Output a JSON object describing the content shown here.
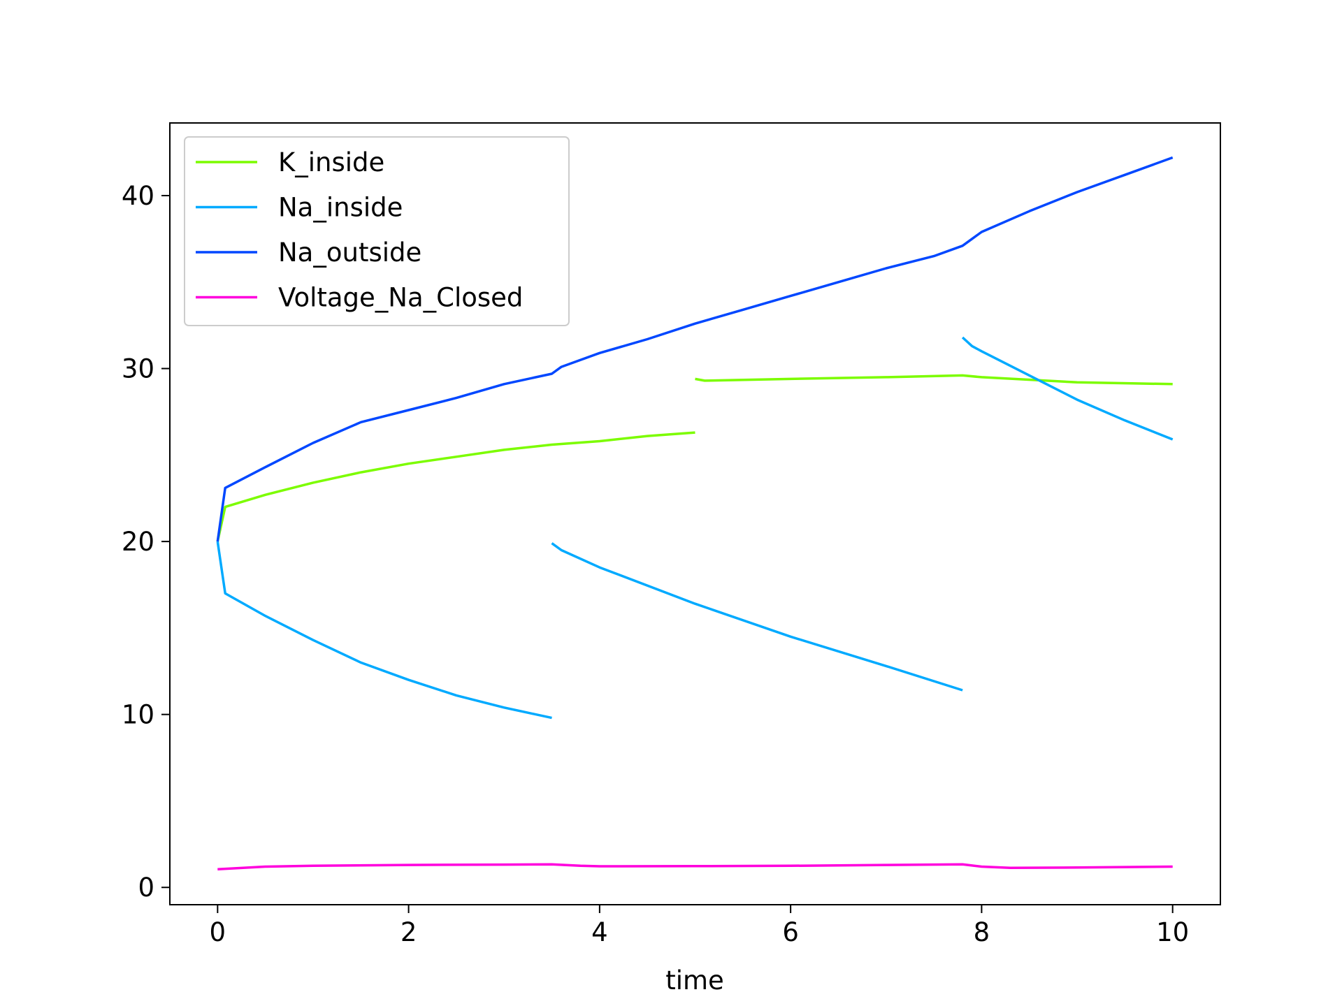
{
  "chart_data": {
    "type": "line",
    "title": "",
    "xlabel": "time",
    "ylabel": "",
    "xlim": [
      -0.5,
      10.5
    ],
    "ylim": [
      -1.0,
      44.2
    ],
    "xticks": [
      0,
      2,
      4,
      6,
      8,
      10
    ],
    "yticks": [
      0,
      10,
      20,
      30,
      40
    ],
    "grid": false,
    "legend_position": "upper-left",
    "series": [
      {
        "name": "K_inside",
        "color": "#7cfc00",
        "segments": [
          [
            [
              0,
              20.0
            ],
            [
              0.08,
              22.0
            ],
            [
              0.5,
              22.7
            ],
            [
              1.0,
              23.4
            ],
            [
              1.5,
              24.0
            ],
            [
              2.0,
              24.5
            ],
            [
              2.5,
              24.9
            ],
            [
              3.0,
              25.3
            ],
            [
              3.5,
              25.6
            ],
            [
              4.0,
              25.8
            ],
            [
              4.5,
              26.1
            ],
            [
              5.0,
              26.3
            ]
          ],
          [
            [
              5.0,
              29.4
            ],
            [
              5.1,
              29.3
            ],
            [
              6.0,
              29.4
            ],
            [
              7.0,
              29.5
            ],
            [
              7.8,
              29.6
            ],
            [
              8.0,
              29.5
            ],
            [
              9.0,
              29.2
            ],
            [
              10.0,
              29.1
            ]
          ]
        ]
      },
      {
        "name": "Na_inside",
        "color": "#00aaff",
        "segments": [
          [
            [
              0,
              20.0
            ],
            [
              0.08,
              17.0
            ],
            [
              0.5,
              15.7
            ],
            [
              1.0,
              14.3
            ],
            [
              1.5,
              13.0
            ],
            [
              2.0,
              12.0
            ],
            [
              2.5,
              11.1
            ],
            [
              3.0,
              10.4
            ],
            [
              3.5,
              9.8
            ]
          ],
          [
            [
              3.5,
              19.9
            ],
            [
              3.6,
              19.5
            ],
            [
              4.0,
              18.5
            ],
            [
              5.0,
              16.4
            ],
            [
              6.0,
              14.5
            ],
            [
              7.0,
              12.8
            ],
            [
              7.8,
              11.4
            ]
          ],
          [
            [
              7.8,
              31.8
            ],
            [
              7.9,
              31.3
            ],
            [
              8.0,
              31.0
            ],
            [
              8.5,
              29.6
            ],
            [
              9.0,
              28.2
            ],
            [
              9.5,
              27.0
            ],
            [
              10.0,
              25.9
            ]
          ]
        ]
      },
      {
        "name": "Na_outside",
        "color": "#0047ff",
        "segments": [
          [
            [
              0,
              20.0
            ],
            [
              0.08,
              23.1
            ],
            [
              0.5,
              24.3
            ],
            [
              1.0,
              25.7
            ],
            [
              1.5,
              26.9
            ],
            [
              2.0,
              27.6
            ],
            [
              2.5,
              28.3
            ],
            [
              3.0,
              29.1
            ],
            [
              3.5,
              29.7
            ],
            [
              3.6,
              30.1
            ],
            [
              4.0,
              30.9
            ],
            [
              4.5,
              31.7
            ],
            [
              5.0,
              32.6
            ],
            [
              5.5,
              33.4
            ],
            [
              6.0,
              34.2
            ],
            [
              6.5,
              35.0
            ],
            [
              7.0,
              35.8
            ],
            [
              7.5,
              36.5
            ],
            [
              7.8,
              37.1
            ],
            [
              7.9,
              37.5
            ],
            [
              8.0,
              37.9
            ],
            [
              8.5,
              39.1
            ],
            [
              9.0,
              40.2
            ],
            [
              9.5,
              41.2
            ],
            [
              10.0,
              42.2
            ]
          ]
        ]
      },
      {
        "name": "Voltage_Na_Closed",
        "color": "#ff00dd",
        "segments": [
          [
            [
              0,
              1.05
            ],
            [
              0.5,
              1.2
            ],
            [
              1.0,
              1.25
            ],
            [
              2.0,
              1.3
            ],
            [
              3.0,
              1.32
            ],
            [
              3.5,
              1.33
            ],
            [
              3.8,
              1.25
            ],
            [
              4.0,
              1.22
            ],
            [
              5.0,
              1.23
            ],
            [
              6.0,
              1.25
            ],
            [
              7.0,
              1.3
            ],
            [
              7.8,
              1.33
            ],
            [
              8.0,
              1.2
            ],
            [
              8.3,
              1.13
            ],
            [
              9.0,
              1.15
            ],
            [
              10.0,
              1.2
            ]
          ]
        ]
      }
    ]
  }
}
